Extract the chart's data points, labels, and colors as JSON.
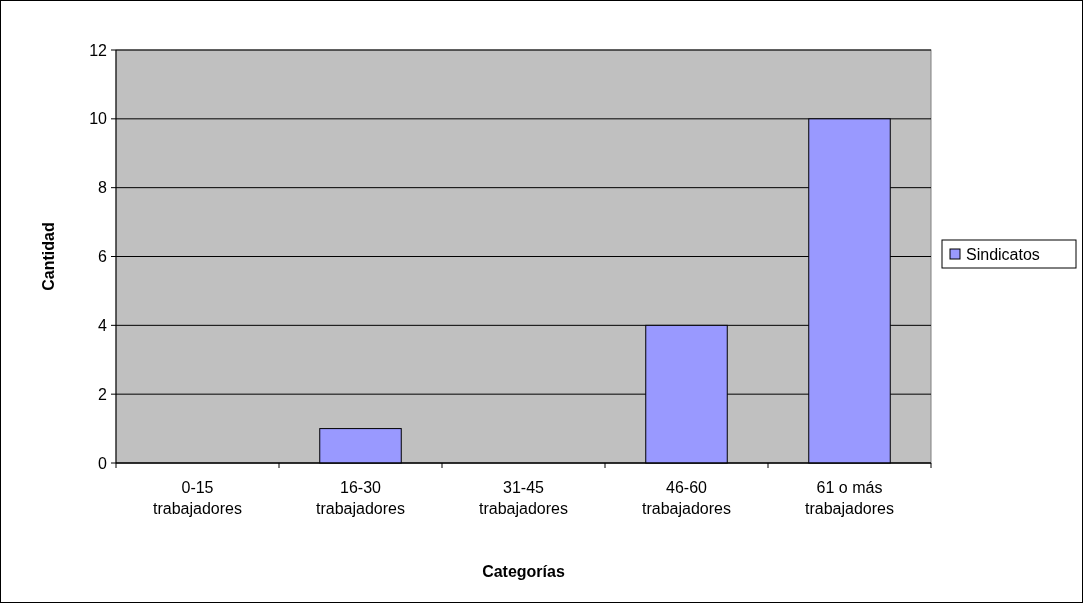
{
  "chart_data": {
    "type": "bar",
    "xlabel": "Categorías",
    "ylabel": "Cantidad",
    "categories": [
      "0-15 trabajadores",
      "16-30 trabajadores",
      "31-45 trabajadores",
      "46-60 trabajadores",
      "61 o más trabajadores"
    ],
    "series": [
      {
        "name": "Sindicatos",
        "color": "#9999ff",
        "values": [
          0,
          1,
          0,
          4,
          10
        ]
      }
    ],
    "ylim": [
      0,
      12
    ],
    "yticks": [
      0,
      2,
      4,
      6,
      8,
      10,
      12
    ],
    "grid": "y",
    "legend": "right"
  }
}
